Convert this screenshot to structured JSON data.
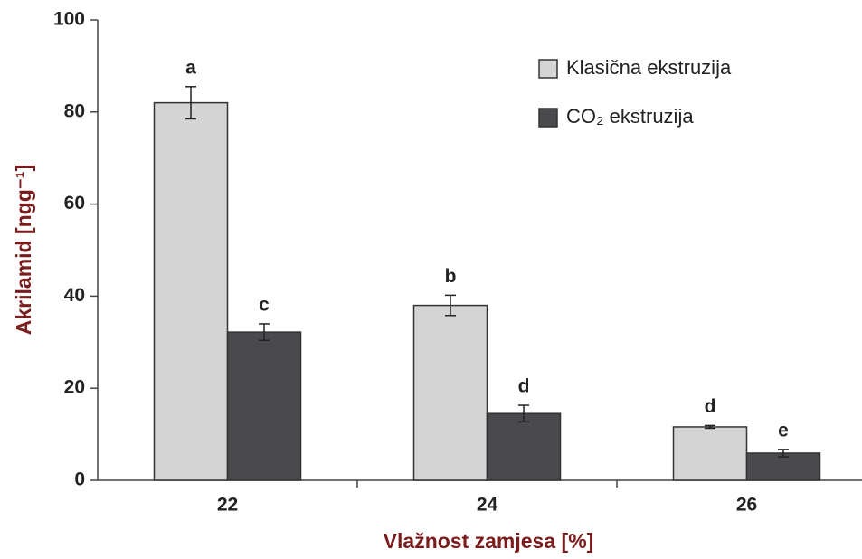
{
  "chart_data": {
    "type": "bar",
    "xlabel": "Vlažnost zamjesa [%]",
    "ylabel": "Akrilamid [ngg⁻¹]",
    "categories": [
      "22",
      "24",
      "26"
    ],
    "series": [
      {
        "name": "Klasična ekstruzija",
        "color": "#d4d4d4",
        "values": [
          82,
          38,
          11.6
        ],
        "errors": [
          3.5,
          2.2,
          0.3
        ],
        "annotations": [
          "a",
          "b",
          "d"
        ]
      },
      {
        "name": "CO₂ ekstruzija",
        "color": "#4a4a4e",
        "values": [
          32.2,
          14.5,
          5.9
        ],
        "errors": [
          1.8,
          1.8,
          0.8
        ],
        "annotations": [
          "c",
          "d",
          "e"
        ]
      }
    ],
    "ylim": [
      0,
      100
    ],
    "yticks": [
      0,
      20,
      40,
      60,
      80,
      100
    ],
    "legend": "upper right"
  }
}
